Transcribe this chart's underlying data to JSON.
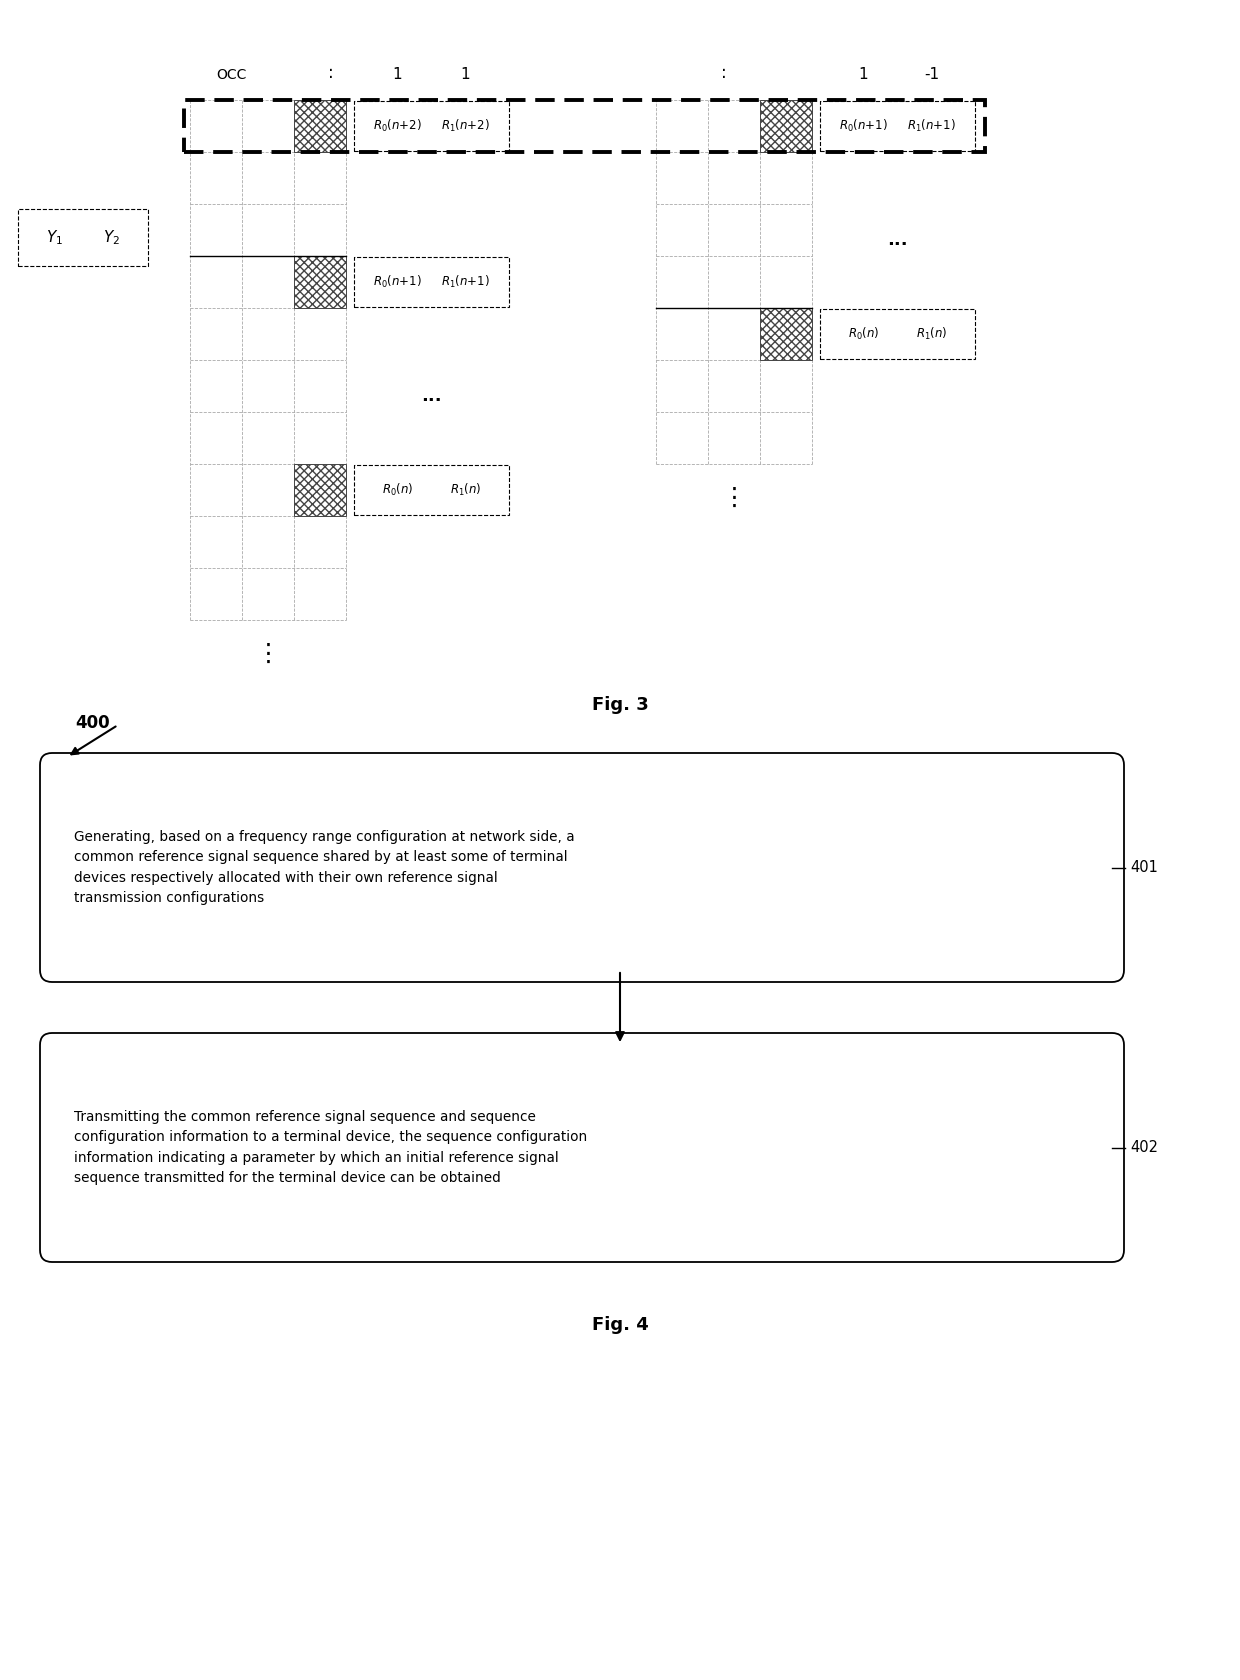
{
  "fig_width": 12.4,
  "fig_height": 16.8,
  "background": "#ffffff",
  "fig3_label": "Fig. 3",
  "fig4_label": "Fig. 4",
  "box401_text": "Generating, based on a frequency range configuration at network side, a\ncommon reference signal sequence shared by at least some of terminal\ndevices respectively allocated with their own reference signal\ntransmission configurations",
  "box402_text": "Transmitting the common reference signal sequence and sequence\nconfiguration information to a terminal device, the sequence configuration\ninformation indicating a parameter by which an initial reference signal\nsequence transmitted for the terminal device can be obtained",
  "label_400": "400",
  "label_401": "401",
  "label_402": "402"
}
